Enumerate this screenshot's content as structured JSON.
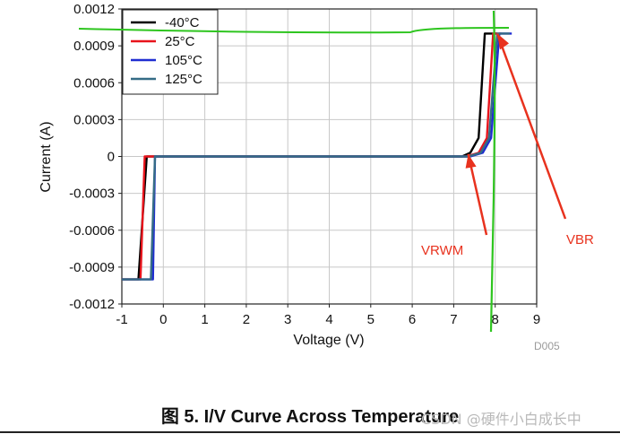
{
  "chart_data": {
    "type": "line",
    "title": "",
    "xlabel": "Voltage (V)",
    "ylabel": "Current (A)",
    "xlim": [
      -1,
      9
    ],
    "ylim": [
      -0.0012,
      0.0012
    ],
    "xticks": [
      -1,
      0,
      1,
      2,
      3,
      4,
      5,
      6,
      7,
      8,
      9
    ],
    "xtick_labels": [
      "-1",
      "0",
      "1",
      "2",
      "3",
      "4",
      "5",
      "6",
      "7",
      "8",
      "9"
    ],
    "yticks": [
      0.0012,
      0.0009,
      0.0006,
      0.0003,
      0,
      -0.0003,
      -0.0006,
      -0.0009,
      -0.0012
    ],
    "ytick_labels": [
      "0.0012",
      "0.0009",
      "0.0006",
      "0.0003",
      "0",
      "-0.0003",
      "-0.0006",
      "-0.0009",
      "-0.0012"
    ],
    "legend_position": "top-left",
    "series": [
      {
        "name": "-40°C",
        "color": "#000000",
        "x": [
          -1,
          -0.6,
          -0.4,
          -0.3,
          7.2,
          7.4,
          7.6,
          7.75,
          7.8,
          8.05
        ],
        "y": [
          -0.001,
          -0.001,
          0,
          0,
          0,
          3e-05,
          0.00015,
          0.001,
          0.001,
          0.001
        ]
      },
      {
        "name": "25°C",
        "color": "#e8141c",
        "x": [
          -1,
          -0.55,
          -0.45,
          -0.3,
          7.3,
          7.6,
          7.8,
          7.95,
          8.0,
          8.15
        ],
        "y": [
          -0.001,
          -0.001,
          0,
          0,
          0,
          3e-05,
          0.00015,
          0.001,
          0.001,
          0.001
        ]
      },
      {
        "name": "105°C",
        "color": "#1f2dd1",
        "x": [
          -1,
          -0.25,
          -0.2,
          0.0,
          7.4,
          7.7,
          7.9,
          8.1,
          8.15,
          8.4
        ],
        "y": [
          -0.001,
          -0.001,
          0,
          0,
          0,
          3e-05,
          0.00015,
          0.001,
          0.001,
          0.001
        ]
      },
      {
        "name": "125°C",
        "color": "#356c86",
        "x": [
          -1,
          -0.3,
          -0.2,
          0.0,
          7.35,
          7.65,
          7.85,
          8.05,
          8.1,
          8.35
        ],
        "y": [
          -0.001,
          -0.001,
          0,
          0,
          0,
          3e-05,
          0.00015,
          0.001,
          0.001,
          0.001
        ]
      }
    ],
    "annotations": [
      {
        "text": "VRWM",
        "color": "#e8321e",
        "points_to": [
          7.35,
          2e-05
        ]
      },
      {
        "text": "VBR",
        "color": "#e8321e",
        "points_to": [
          8.05,
          0.001
        ]
      }
    ],
    "figure_id": "D005"
  },
  "caption": "图 5. I/V Curve Across Temperature",
  "watermark": "CSDN @硬件小白成长中"
}
